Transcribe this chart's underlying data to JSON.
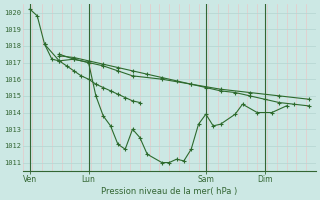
{
  "title": "Pression niveau de la mer( hPa )",
  "background_color": "#cce8e4",
  "grid_color_h": "#b8d8d4",
  "grid_color_v": "#e8c8c8",
  "line_color": "#2d6a2d",
  "vline_color": "#336633",
  "ylim": [
    1010.5,
    1020.5
  ],
  "yticks": [
    1011,
    1012,
    1013,
    1014,
    1015,
    1016,
    1017,
    1018,
    1019,
    1020
  ],
  "xtick_labels": [
    "Ven",
    "Lun",
    "Sam",
    "Dim"
  ],
  "xtick_positions": [
    3,
    27,
    75,
    99
  ],
  "vline_positions": [
    3,
    27,
    75,
    99
  ],
  "xlim": [
    0,
    120
  ],
  "num_minor_vticks": 30,
  "series": [
    [
      1020.2,
      1019.8,
      1018.1,
      1017.2,
      1017.1,
      1016.8,
      1016.5,
      1016.2,
      1016.0,
      1015.7,
      1015.5,
      1015.3,
      1015.1,
      1014.9,
      1014.7,
      1014.6
    ],
    [
      1018.1,
      1017.1,
      1017.2,
      1017.0,
      1015.0,
      1013.8,
      1013.2,
      1012.1,
      1011.8,
      1013.0,
      1012.5,
      1011.5,
      1011.0,
      1011.0,
      1011.2,
      1011.1,
      1011.8,
      1013.3,
      1013.9,
      1013.2,
      1013.3,
      1013.9,
      1014.5,
      1014.0,
      1014.0,
      1014.4
    ],
    [
      1017.5,
      1017.2,
      1017.0,
      1016.8,
      1016.5,
      1016.2,
      1016.0,
      1015.7,
      1015.4,
      1015.2,
      1015.0,
      1014.8
    ],
    [
      1017.4,
      1017.3,
      1017.1,
      1016.9,
      1016.7,
      1016.5,
      1016.3,
      1016.1,
      1015.9,
      1015.7,
      1015.5,
      1015.3,
      1015.2,
      1015.0,
      1014.8,
      1014.6,
      1014.5,
      1014.4
    ]
  ],
  "series_x": [
    [
      3,
      6,
      9,
      12,
      15,
      18,
      21,
      24,
      27,
      30,
      33,
      36,
      39,
      42,
      45,
      48
    ],
    [
      9,
      15,
      21,
      27,
      30,
      33,
      36,
      39,
      42,
      45,
      48,
      51,
      57,
      60,
      63,
      66,
      69,
      72,
      75,
      78,
      81,
      87,
      90,
      96,
      102,
      108
    ],
    [
      15,
      21,
      27,
      33,
      39,
      45,
      57,
      69,
      81,
      93,
      105,
      117
    ],
    [
      15,
      21,
      27,
      33,
      39,
      45,
      51,
      57,
      63,
      69,
      75,
      81,
      87,
      93,
      99,
      105,
      111,
      117
    ]
  ]
}
